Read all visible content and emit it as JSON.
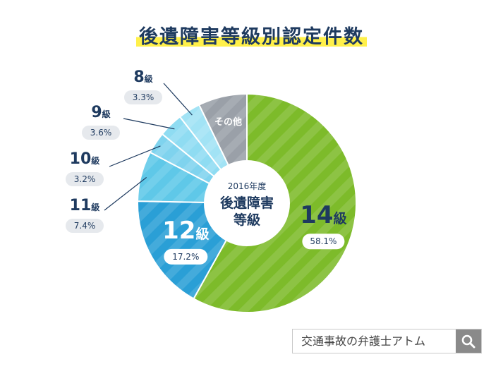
{
  "chart_data": {
    "type": "pie",
    "title": "後遺障害等級別認定件数",
    "center_label": {
      "year": "2016年度",
      "line1": "後遺障害",
      "line2": "等級"
    },
    "slices": [
      {
        "label": "14級",
        "value": 58.1,
        "value_label": "58.1%",
        "color": "#7dbb2a"
      },
      {
        "label": "12級",
        "value": 17.2,
        "value_label": "17.2%",
        "color": "#2a9fd6"
      },
      {
        "label": "11級",
        "value": 7.4,
        "value_label": "7.4%",
        "color": "#5fc8e8"
      },
      {
        "label": "10級",
        "value": 3.2,
        "value_label": "3.2%",
        "color": "#7fd3ee"
      },
      {
        "label": "9級",
        "value": 3.6,
        "value_label": "3.6%",
        "color": "#8fdcf2"
      },
      {
        "label": "8級",
        "value": 3.3,
        "value_label": "3.3%",
        "color": "#a2e3f5"
      },
      {
        "label": "その他",
        "value": 7.2,
        "value_label": "",
        "color": "#9aa0a8"
      }
    ]
  },
  "search": {
    "text": "交通事故の弁護士アトム"
  }
}
